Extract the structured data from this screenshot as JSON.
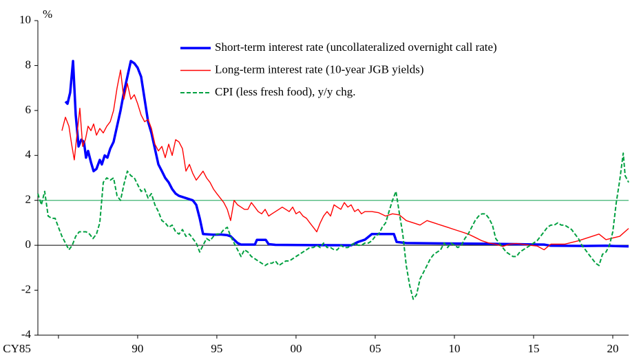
{
  "chart_data": {
    "type": "line",
    "y_axis_label": "%",
    "xlim": [
      1983.7,
      2021.0
    ],
    "xticks": [
      {
        "value": 1985,
        "label": "CY85"
      },
      {
        "value": 1990,
        "label": "90"
      },
      {
        "value": 1995,
        "label": "95"
      },
      {
        "value": 2000,
        "label": "00"
      },
      {
        "value": 2005,
        "label": "05"
      },
      {
        "value": 2010,
        "label": "10"
      },
      {
        "value": 2015,
        "label": "15"
      },
      {
        "value": 2020,
        "label": "20"
      }
    ],
    "ylim": [
      -4,
      10
    ],
    "yticks": [
      -4,
      -2,
      0,
      2,
      4,
      6,
      8,
      10
    ],
    "reference_line": {
      "value": 2,
      "color": "#3cb371"
    },
    "legend": "upper right",
    "series": [
      {
        "name": "Short-term interest rate (uncollateralized overnight call rate)",
        "color": "#0000ff",
        "style": "solid",
        "x": [
          1985.44,
          1985.57,
          1985.74,
          1985.92,
          1986.09,
          1986.27,
          1986.44,
          1986.61,
          1986.74,
          1986.87,
          1987.05,
          1987.22,
          1987.4,
          1987.61,
          1987.74,
          1987.92,
          1988.09,
          1988.27,
          1988.48,
          1988.7,
          1988.92,
          1989.13,
          1989.35,
          1989.57,
          1989.79,
          1990.0,
          1990.22,
          1990.44,
          1990.66,
          1990.87,
          1991.09,
          1991.31,
          1991.53,
          1991.74,
          1991.96,
          1992.18,
          1992.4,
          1992.61,
          1993.05,
          1993.48,
          1993.7,
          1993.92,
          1994.13,
          1994.79,
          1995.22,
          1995.66,
          1995.87,
          1996.09,
          1996.31,
          1996.53,
          1997.4,
          1997.53,
          1998.09,
          1998.27,
          1998.7,
          2000.87,
          2003.48,
          2003.92,
          2004.35,
          2004.79,
          2006.18,
          2006.35,
          2006.96,
          2009.57,
          2011.74,
          2013.92,
          2015.66,
          2016.09,
          2018.27,
          2019.57,
          2021.0
        ],
        "values": [
          6.4,
          6.3,
          6.8,
          8.2,
          5.8,
          4.4,
          4.7,
          4.6,
          3.9,
          4.2,
          3.7,
          3.3,
          3.4,
          3.8,
          3.6,
          4.0,
          3.9,
          4.3,
          4.6,
          5.3,
          6.0,
          6.8,
          7.5,
          8.2,
          8.1,
          7.9,
          7.5,
          6.5,
          5.5,
          5.0,
          4.3,
          3.6,
          3.3,
          3.0,
          2.8,
          2.5,
          2.3,
          2.2,
          2.1,
          2.0,
          1.8,
          1.2,
          0.5,
          0.47,
          0.48,
          0.45,
          0.4,
          0.25,
          0.1,
          0.03,
          0.03,
          0.24,
          0.24,
          0.05,
          0.02,
          0.01,
          0.0,
          0.15,
          0.25,
          0.5,
          0.5,
          0.15,
          0.1,
          0.08,
          0.07,
          0.05,
          0.03,
          -0.02,
          -0.03,
          -0.02,
          -0.05
        ]
      },
      {
        "name": "Long-term interest rate (10-year JGB yields)",
        "color": "#ff0000",
        "style": "solid",
        "x": [
          1985.22,
          1985.44,
          1985.66,
          1985.83,
          1986.0,
          1986.18,
          1986.35,
          1986.53,
          1986.7,
          1986.87,
          1987.05,
          1987.22,
          1987.4,
          1987.61,
          1987.83,
          1988.05,
          1988.27,
          1988.48,
          1988.7,
          1988.92,
          1989.13,
          1989.35,
          1989.57,
          1989.79,
          1990.0,
          1990.22,
          1990.44,
          1990.66,
          1990.87,
          1991.09,
          1991.31,
          1991.53,
          1991.74,
          1991.96,
          1992.18,
          1992.4,
          1992.61,
          1992.83,
          1993.05,
          1993.27,
          1993.48,
          1993.7,
          1993.92,
          1994.13,
          1994.35,
          1994.57,
          1994.79,
          1995.0,
          1995.22,
          1995.44,
          1995.66,
          1995.87,
          1996.09,
          1996.31,
          1996.53,
          1996.74,
          1996.96,
          1997.18,
          1997.4,
          1997.61,
          1997.83,
          1998.05,
          1998.27,
          1998.48,
          1998.7,
          1998.92,
          1999.13,
          1999.35,
          1999.57,
          1999.79,
          2000.0,
          2000.22,
          2000.44,
          2000.66,
          2000.87,
          2001.09,
          2001.31,
          2001.53,
          2001.74,
          2001.96,
          2002.18,
          2002.4,
          2002.61,
          2002.83,
          2003.05,
          2003.27,
          2003.48,
          2003.7,
          2003.92,
          2004.13,
          2004.35,
          2004.79,
          2005.22,
          2005.66,
          2006.09,
          2006.53,
          2006.96,
          2007.4,
          2007.83,
          2008.27,
          2008.7,
          2009.13,
          2009.57,
          2010.0,
          2010.44,
          2010.87,
          2011.31,
          2011.74,
          2012.18,
          2012.61,
          2013.05,
          2013.48,
          2013.92,
          2014.79,
          2015.22,
          2015.66,
          2016.09,
          2016.96,
          2017.83,
          2018.7,
          2019.13,
          2019.57,
          2020.44,
          2021.0
        ],
        "values": [
          5.1,
          5.7,
          5.3,
          4.5,
          3.8,
          5.0,
          6.1,
          4.4,
          4.7,
          5.3,
          5.1,
          5.4,
          4.9,
          5.2,
          5.0,
          5.3,
          5.5,
          6.0,
          7.0,
          7.8,
          6.5,
          7.2,
          6.5,
          6.7,
          6.3,
          5.8,
          5.5,
          5.6,
          5.2,
          4.5,
          4.2,
          4.4,
          3.9,
          4.5,
          4.0,
          4.7,
          4.6,
          4.3,
          3.3,
          3.6,
          3.2,
          2.9,
          3.1,
          3.3,
          3.0,
          2.8,
          2.5,
          2.3,
          2.1,
          1.9,
          1.6,
          1.1,
          2.0,
          1.8,
          1.7,
          1.6,
          1.6,
          1.9,
          1.7,
          1.5,
          1.4,
          1.6,
          1.3,
          1.4,
          1.5,
          1.6,
          1.7,
          1.6,
          1.5,
          1.7,
          1.4,
          1.5,
          1.3,
          1.2,
          1.0,
          0.8,
          0.6,
          1.0,
          1.3,
          1.5,
          1.3,
          1.8,
          1.7,
          1.6,
          1.9,
          1.7,
          1.8,
          1.5,
          1.6,
          1.4,
          1.5,
          1.5,
          1.45,
          1.3,
          1.4,
          1.35,
          1.1,
          1.0,
          0.9,
          1.1,
          1.0,
          0.9,
          0.8,
          0.7,
          0.6,
          0.5,
          0.35,
          0.2,
          0.1,
          0.05,
          -0.05,
          0.05,
          0.08,
          0.0,
          -0.03,
          -0.2,
          0.05,
          0.05,
          0.2,
          0.4,
          0.5,
          0.25,
          0.4,
          0.75
        ]
      },
      {
        "name": "CPI (less fresh food), y/y chg.",
        "color": "#00a040",
        "style": "dashed",
        "x": [
          1983.7,
          1983.92,
          1984.13,
          1984.35,
          1984.57,
          1984.79,
          1985.0,
          1985.22,
          1985.44,
          1985.66,
          1985.87,
          1986.09,
          1986.31,
          1986.53,
          1986.74,
          1986.96,
          1987.18,
          1987.4,
          1987.61,
          1987.83,
          1988.05,
          1988.27,
          1988.48,
          1988.7,
          1988.92,
          1989.13,
          1989.35,
          1989.57,
          1989.79,
          1990.0,
          1990.22,
          1990.44,
          1990.66,
          1990.87,
          1991.09,
          1991.31,
          1991.53,
          1991.74,
          1991.96,
          1992.18,
          1992.4,
          1992.61,
          1992.83,
          1993.05,
          1993.27,
          1993.48,
          1993.7,
          1993.92,
          1994.13,
          1994.35,
          1994.57,
          1994.79,
          1995.0,
          1995.22,
          1995.44,
          1995.66,
          1995.87,
          1996.09,
          1996.31,
          1996.53,
          1996.74,
          1996.96,
          1997.18,
          1997.4,
          1997.61,
          1997.83,
          1998.05,
          1998.27,
          1998.48,
          1998.7,
          1998.92,
          1999.13,
          1999.35,
          1999.57,
          1999.79,
          2000.0,
          2000.22,
          2000.44,
          2000.66,
          2000.87,
          2001.09,
          2001.31,
          2001.53,
          2001.74,
          2001.96,
          2002.18,
          2002.4,
          2002.61,
          2002.83,
          2003.05,
          2003.27,
          2003.48,
          2003.7,
          2003.92,
          2004.13,
          2004.35,
          2004.57,
          2004.79,
          2005.0,
          2005.22,
          2005.44,
          2005.66,
          2005.87,
          2006.09,
          2006.31,
          2006.53,
          2006.74,
          2006.96,
          2007.18,
          2007.4,
          2007.61,
          2007.83,
          2008.05,
          2008.27,
          2008.48,
          2008.7,
          2008.92,
          2009.13,
          2009.35,
          2009.57,
          2009.79,
          2010.0,
          2010.22,
          2010.44,
          2010.66,
          2010.87,
          2011.09,
          2011.31,
          2011.53,
          2011.74,
          2011.96,
          2012.18,
          2012.4,
          2012.61,
          2012.83,
          2013.05,
          2013.27,
          2013.48,
          2013.7,
          2013.92,
          2014.13,
          2014.35,
          2014.57,
          2014.79,
          2015.0,
          2015.22,
          2015.44,
          2015.66,
          2015.87,
          2016.09,
          2016.31,
          2016.53,
          2016.74,
          2016.96,
          2017.18,
          2017.4,
          2017.61,
          2017.83,
          2018.05,
          2018.27,
          2018.48,
          2018.7,
          2018.92,
          2019.13,
          2019.35,
          2019.57,
          2019.79,
          2020.0,
          2020.22,
          2020.44,
          2020.66,
          2020.78,
          2021.0
        ],
        "values": [
          2.3,
          1.8,
          2.4,
          1.3,
          1.2,
          1.2,
          0.8,
          0.4,
          0.1,
          -0.2,
          0.0,
          0.4,
          0.6,
          0.6,
          0.6,
          0.5,
          0.3,
          0.5,
          1.0,
          2.8,
          3.0,
          2.9,
          3.0,
          2.2,
          2.0,
          2.7,
          3.3,
          3.1,
          3.0,
          2.7,
          2.4,
          2.5,
          2.1,
          2.3,
          1.8,
          1.5,
          1.1,
          1.0,
          0.8,
          0.9,
          0.6,
          0.5,
          0.7,
          0.4,
          0.5,
          0.3,
          0.1,
          -0.3,
          0.0,
          0.3,
          0.2,
          0.4,
          0.5,
          0.5,
          0.7,
          0.8,
          0.4,
          0.1,
          -0.2,
          -0.5,
          -0.2,
          -0.3,
          -0.5,
          -0.6,
          -0.7,
          -0.8,
          -0.9,
          -0.8,
          -0.8,
          -0.7,
          -0.9,
          -0.8,
          -0.7,
          -0.7,
          -0.6,
          -0.5,
          -0.4,
          -0.3,
          -0.2,
          -0.1,
          -0.1,
          0.0,
          -0.1,
          0.1,
          -0.1,
          -0.1,
          -0.2,
          -0.2,
          0.0,
          -0.1,
          -0.1,
          0.0,
          0.1,
          0.0,
          0.0,
          0.1,
          0.1,
          0.2,
          0.4,
          0.5,
          0.8,
          1.0,
          1.5,
          2.0,
          2.4,
          1.4,
          0.5,
          -0.9,
          -1.8,
          -2.4,
          -2.2,
          -1.5,
          -1.2,
          -0.9,
          -0.6,
          -0.4,
          -0.3,
          -0.2,
          0.1,
          -0.1,
          0.1,
          0.0,
          -0.1,
          0.0,
          0.3,
          0.5,
          0.8,
          1.1,
          1.3,
          1.4,
          1.4,
          1.2,
          0.9,
          0.3,
          0.1,
          -0.1,
          -0.3,
          -0.4,
          -0.5,
          -0.5,
          -0.3,
          -0.2,
          -0.1,
          0.0,
          0.1,
          0.2,
          0.4,
          0.6,
          0.8,
          0.9,
          0.9,
          1.0,
          0.9,
          0.9,
          0.8,
          0.7,
          0.5,
          0.3,
          0.0,
          -0.2,
          -0.4,
          -0.6,
          -0.8,
          -0.9,
          -0.4,
          -0.3,
          0.0,
          0.6,
          1.9,
          2.9,
          4.1,
          3.1,
          2.8
        ]
      }
    ]
  }
}
